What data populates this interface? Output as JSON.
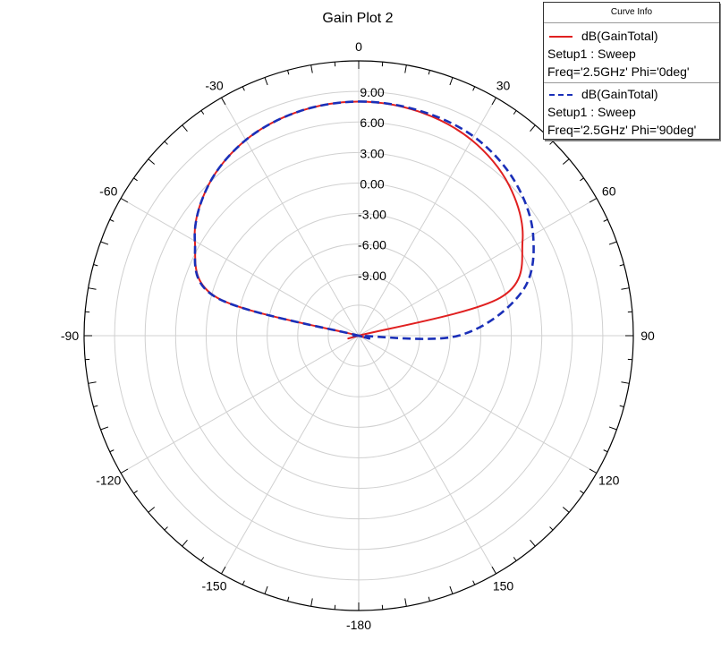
{
  "chart_data": {
    "type": "polar-line",
    "title": "Gain Plot 2",
    "angle_ticks": [
      "0",
      "30",
      "60",
      "90",
      "120",
      "150",
      "-180",
      "-150",
      "-120",
      "-90",
      "-60",
      "-30"
    ],
    "radial_ticks": [
      "9.00",
      "6.00",
      "3.00",
      "0.00",
      "-3.00",
      "-6.00",
      "-9.00"
    ],
    "radial_range": [
      -15,
      12
    ],
    "grid": true,
    "legend_title": "Curve Info",
    "legend_placement": "top-right",
    "series": [
      {
        "name": "dB(GainTotal)",
        "setup": "Setup1 : Sweep",
        "params": "Freq='2.5GHz' Phi='0deg'",
        "color": "#e02020",
        "dash": "solid",
        "theta": [
          0,
          15,
          30,
          45,
          60,
          75,
          90,
          105,
          120,
          135,
          150,
          165,
          180,
          -165,
          -150,
          -135,
          -120,
          -105,
          -90,
          -75,
          -60,
          -45,
          -30,
          -15
        ],
        "gain": [
          8.0,
          7.8,
          7.2,
          5.9,
          3.6,
          -0.6,
          -15.0,
          -15.0,
          -15.0,
          -15.0,
          -15.0,
          -15.0,
          -15.0,
          -15.0,
          -15.0,
          -15.0,
          -15.0,
          -15.0,
          -15.0,
          -0.6,
          3.6,
          5.9,
          7.2,
          7.8
        ]
      },
      {
        "name": "dB(GainTotal)",
        "setup": "Setup1 : Sweep",
        "params": "Freq='2.5GHz' Phi='90deg'",
        "color": "#1a2fb8",
        "dash": "dashed",
        "theta": [
          0,
          15,
          30,
          45,
          60,
          75,
          90,
          105,
          120,
          135,
          150,
          165,
          180,
          -165,
          -150,
          -135,
          -120,
          -105,
          -90,
          -75,
          -60,
          -45,
          -30,
          -15
        ],
        "gain": [
          8.0,
          7.9,
          7.6,
          6.6,
          4.8,
          1.6,
          -5.2,
          -15.0,
          -15.0,
          -15.0,
          -15.0,
          -15.0,
          -15.0,
          -15.0,
          -15.0,
          -15.0,
          -15.0,
          -15.0,
          -15.0,
          -0.5,
          3.6,
          5.9,
          7.2,
          7.8
        ]
      }
    ]
  }
}
